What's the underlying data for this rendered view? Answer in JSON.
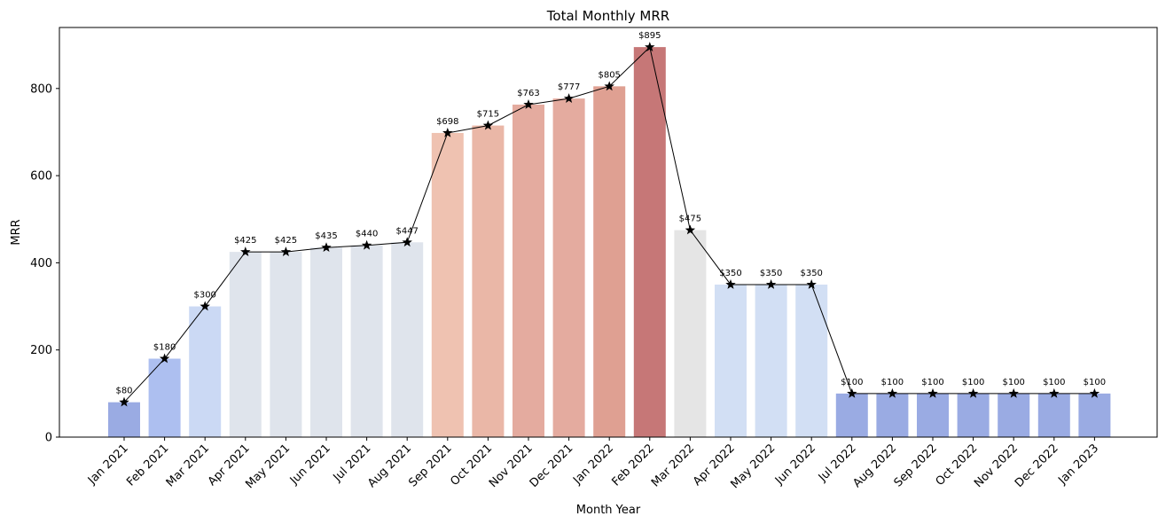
{
  "chart_data": {
    "type": "bar",
    "title": "Total Monthly MRR",
    "xlabel": "Month Year",
    "ylabel": "MRR",
    "ylim": [
      0,
      940
    ],
    "yticks": [
      0,
      200,
      400,
      600,
      800
    ],
    "grid": false,
    "legend": "none",
    "categories": [
      "Jan 2021",
      "Feb 2021",
      "Mar 2021",
      "Apr 2021",
      "May 2021",
      "Jun 2021",
      "Jul 2021",
      "Aug 2021",
      "Sep 2021",
      "Oct 2021",
      "Nov 2021",
      "Dec 2021",
      "Jan 2022",
      "Feb 2022",
      "Mar 2022",
      "Apr 2022",
      "May 2022",
      "Jun 2022",
      "Jul 2022",
      "Aug 2022",
      "Sep 2022",
      "Oct 2022",
      "Nov 2022",
      "Dec 2022",
      "Jan 2023"
    ],
    "values": [
      80,
      180,
      300,
      425,
      425,
      435,
      440,
      447,
      698,
      715,
      763,
      777,
      805,
      895,
      475,
      350,
      350,
      350,
      100,
      100,
      100,
      100,
      100,
      100,
      100
    ],
    "data_labels": [
      "$80",
      "$180",
      "$300",
      "$425",
      "$425",
      "$435",
      "$440",
      "$447",
      "$698",
      "$715",
      "$763",
      "$777",
      "$805",
      "$895",
      "$475",
      "$350",
      "$350",
      "$350",
      "$100",
      "$100",
      "$100",
      "$100",
      "$100",
      "$100",
      "$100"
    ],
    "bar_colors": [
      "#9aabe3",
      "#adbff0",
      "#cbd9f4",
      "#dfe4ec",
      "#dfe4ec",
      "#dfe4ec",
      "#dfe4ec",
      "#dfe4ec",
      "#efc2b1",
      "#eab7a7",
      "#e4ab9f",
      "#e4ab9f",
      "#dfa092",
      "#c67777",
      "#e5e5e5",
      "#d2dff4",
      "#d2dff4",
      "#d2dff4",
      "#9aabe3",
      "#9aabe3",
      "#9aabe3",
      "#9aabe3",
      "#9aabe3",
      "#9aabe3",
      "#9aabe3"
    ],
    "line_color": "#000000",
    "marker": "star"
  }
}
